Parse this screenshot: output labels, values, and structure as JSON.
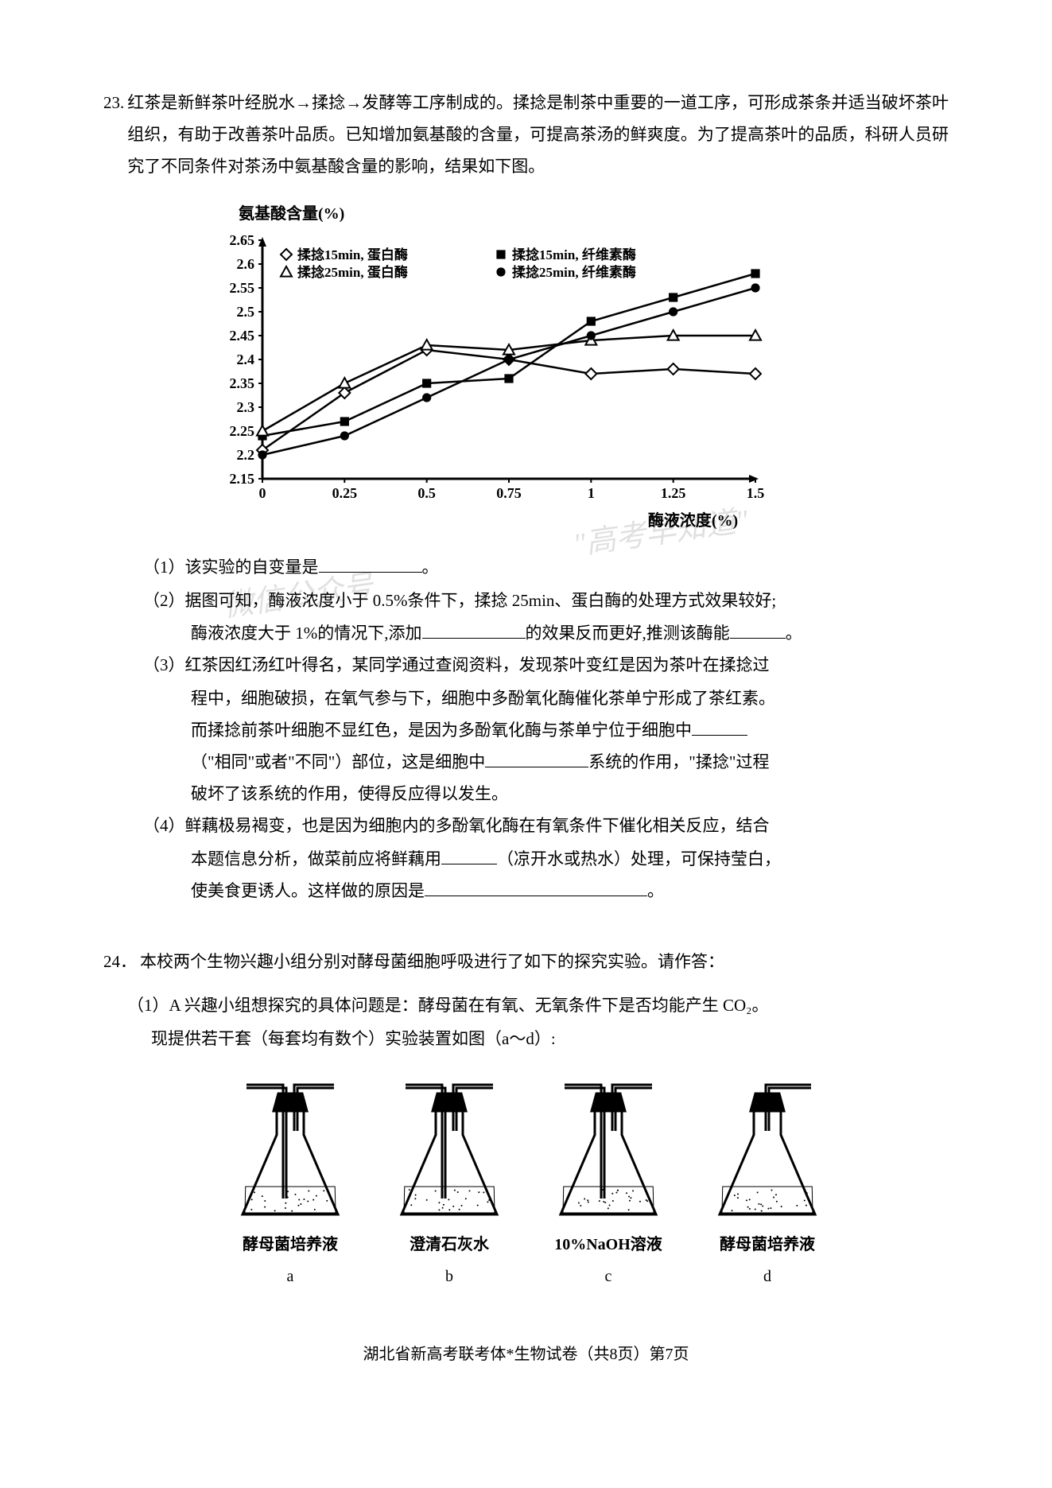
{
  "q23": {
    "number": "23.",
    "intro": "红茶是新鲜茶叶经脱水→揉捻→发酵等工序制成的。揉捻是制茶中重要的一道工序，可形成茶条并适当破坏茶叶组织，有助于改善茶叶品质。已知增加氨基酸的含量，可提高茶汤的鲜爽度。为了提高茶叶的品质，科研人员研究了不同条件对茶汤中氨基酸含量的影响，结果如下图。",
    "chart": {
      "type": "line",
      "y_title": "氨基酸含量(%)",
      "x_title": "酶液浓度(%)",
      "x_ticks": [
        "0",
        "0.25",
        "0.5",
        "0.75",
        "1",
        "1.25",
        "1.5"
      ],
      "y_ticks": [
        "2.15",
        "2.2",
        "2.25",
        "2.3",
        "2.35",
        "2.4",
        "2.45",
        "2.5",
        "2.55",
        "2.6",
        "2.65"
      ],
      "ylim": [
        2.15,
        2.65
      ],
      "xlim": [
        0,
        1.5
      ],
      "legend": [
        {
          "marker": "diamond-open",
          "label": "揉捻15min, 蛋白酶"
        },
        {
          "marker": "square-filled",
          "label": "揉捻15min, 纤维素酶"
        },
        {
          "marker": "triangle-open",
          "label": "揉捻25min, 蛋白酶"
        },
        {
          "marker": "circle-filled",
          "label": "揉捻25min, 纤维素酶"
        }
      ],
      "series": {
        "diamond_open": [
          [
            0,
            2.21
          ],
          [
            0.25,
            2.33
          ],
          [
            0.5,
            2.42
          ],
          [
            0.75,
            2.4
          ],
          [
            1,
            2.37
          ],
          [
            1.25,
            2.38
          ],
          [
            1.5,
            2.37
          ]
        ],
        "square_filled": [
          [
            0,
            2.24
          ],
          [
            0.25,
            2.27
          ],
          [
            0.5,
            2.35
          ],
          [
            0.75,
            2.36
          ],
          [
            1,
            2.48
          ],
          [
            1.25,
            2.53
          ],
          [
            1.5,
            2.58
          ]
        ],
        "triangle_open": [
          [
            0,
            2.25
          ],
          [
            0.25,
            2.35
          ],
          [
            0.5,
            2.43
          ],
          [
            0.75,
            2.42
          ],
          [
            1,
            2.44
          ],
          [
            1.25,
            2.45
          ],
          [
            1.5,
            2.45
          ]
        ],
        "circle_filled": [
          [
            0,
            2.2
          ],
          [
            0.25,
            2.24
          ],
          [
            0.5,
            2.32
          ],
          [
            0.75,
            2.4
          ],
          [
            1,
            2.45
          ],
          [
            1.25,
            2.5
          ],
          [
            1.5,
            2.55
          ]
        ]
      },
      "line_color": "#000000",
      "line_width": 2.5,
      "marker_size": 7,
      "background_color": "#ffffff",
      "axis_color": "#000000",
      "font_size": 18,
      "font_weight": "bold"
    },
    "sub1_prefix": "（1）该实验的自变量是",
    "sub1_suffix": "。",
    "sub2_line1": "（2）据图可知，酶液浓度小于 0.5%条件下，揉捻 25min、蛋白酶的处理方式效果较好;",
    "sub2_line2a": "酶液浓度大于 1%的情况下,添加",
    "sub2_line2b": "的效果反而更好,推测该酶能",
    "sub2_line2c": "。",
    "sub3_line1": "（3）红茶因红汤红叶得名，某同学通过查阅资料，发现茶叶变红是因为茶叶在揉捻过",
    "sub3_line2": "程中，细胞破损，在氧气参与下，细胞中多酚氧化酶催化茶单宁形成了茶红素。",
    "sub3_line3a": "而揉捻前茶叶细胞不显红色，是因为多酚氧化酶与茶单宁位于细胞中",
    "sub3_line4a": "（\"相同\"或者\"不同\"）部位，这是细胞中",
    "sub3_line4b": "系统的作用，\"揉捻\"过程",
    "sub3_line5": "破坏了该系统的作用，使得反应得以发生。",
    "sub4_line1": "（4）鲜藕极易褐变，也是因为细胞内的多酚氧化酶在有氧条件下催化相关反应，结合",
    "sub4_line2a": "本题信息分析，做菜前应将鲜藕用",
    "sub4_line2b": "（凉开水或热水）处理，可保持莹白，",
    "sub4_line3a": "使美食更诱人。这样做的原因是",
    "sub4_line3b": "。"
  },
  "q24": {
    "number": "24．",
    "intro": "本校两个生物兴趣小组分别对酵母菌细胞呼吸进行了如下的探究实验。请作答：",
    "sub1_line1": "（1）A 兴趣小组想探究的具体问题是：酵母菌在有氧、无氧条件下是否均能产生 CO₂。",
    "sub1_line2": "现提供若干套（每套均有数个）实验装置如图（a～d）:",
    "flasks": [
      {
        "label": "酵母菌培养液",
        "letter": "a",
        "type": "two_tube_long",
        "fill": 0.25
      },
      {
        "label": "澄清石灰水",
        "letter": "b",
        "type": "two_tube_long",
        "fill": 0.25
      },
      {
        "label": "10%NaOH溶液",
        "letter": "c",
        "type": "two_tube_long",
        "fill": 0.25
      },
      {
        "label": "酵母菌培养液",
        "letter": "d",
        "type": "one_tube",
        "fill": 0.25
      }
    ],
    "flask_line_color": "#000000",
    "flask_line_width": 3
  },
  "watermarks": {
    "wm1": "\"高考早知道\"",
    "wm2": "微信公众号"
  },
  "footer": "湖北省新高考联考体*生物试卷（共8页）第7页"
}
